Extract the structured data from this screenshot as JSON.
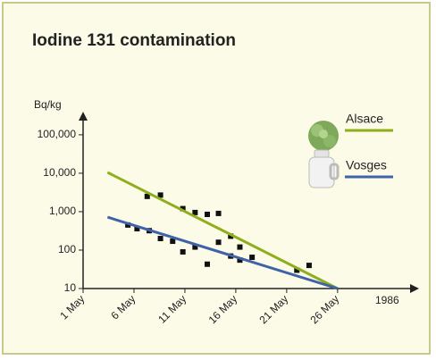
{
  "chart_data": {
    "type": "line",
    "title": "Iodine 131 contamination",
    "ylabel": "Bq/kg",
    "xlabel": "1986",
    "log_scale": true,
    "xlim": [
      1,
      34
    ],
    "ylim": [
      10,
      400000
    ],
    "xticks": [
      {
        "value": 1,
        "label": "1 May"
      },
      {
        "value": 6,
        "label": "6 May"
      },
      {
        "value": 11,
        "label": "11 May"
      },
      {
        "value": 16,
        "label": "16 May"
      },
      {
        "value": 21,
        "label": "21 May"
      },
      {
        "value": 26,
        "label": "26 May"
      }
    ],
    "yticks": [
      10,
      100,
      {
        "value": 1000,
        "label": "1,000"
      },
      {
        "value": 10000,
        "label": "10,000"
      },
      {
        "value": 100000,
        "label": "100,000"
      }
    ],
    "series": [
      {
        "name": "Alsace",
        "color": "#8fae1b",
        "x": [
          3.4,
          26
        ],
        "values": [
          10500,
          10
        ]
      },
      {
        "name": "Vosges",
        "color": "#3f62a8",
        "x": [
          3.4,
          26
        ],
        "values": [
          720,
          10
        ]
      }
    ],
    "points": {
      "color": "#111111",
      "x": [
        5.4,
        6.3,
        7.3,
        7.5,
        8.6,
        8.6,
        9.8,
        10.8,
        10.8,
        12,
        12,
        13.2,
        13.2,
        14.3,
        14.3,
        15.5,
        15.5,
        16.4,
        16.4,
        17.6,
        22,
        23.2
      ],
      "y": [
        450,
        360,
        2500,
        320,
        2700,
        200,
        170,
        1200,
        90,
        950,
        120,
        850,
        43,
        900,
        160,
        230,
        70,
        120,
        55,
        65,
        30,
        40
      ]
    }
  }
}
